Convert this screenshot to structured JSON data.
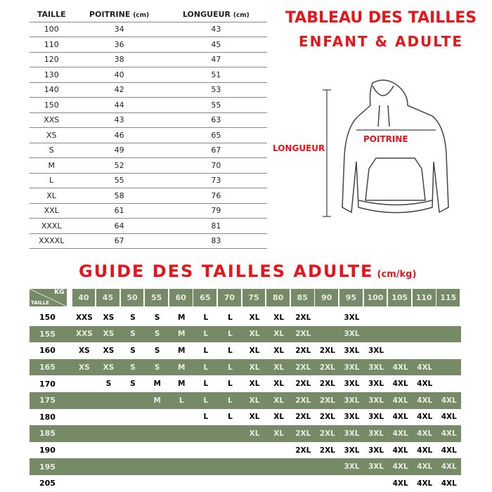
{
  "size_table": {
    "headers": {
      "taille": "TAILLE",
      "poitrine": "POITRINE",
      "longueur": "LONGUEUR",
      "unit": "(cm)"
    },
    "rows": [
      [
        "100",
        "34",
        "43"
      ],
      [
        "110",
        "36",
        "45"
      ],
      [
        "120",
        "38",
        "47"
      ],
      [
        "130",
        "40",
        "51"
      ],
      [
        "140",
        "42",
        "53"
      ],
      [
        "150",
        "44",
        "55"
      ],
      [
        "XXS",
        "43",
        "63"
      ],
      [
        "XS",
        "46",
        "65"
      ],
      [
        "S",
        "49",
        "67"
      ],
      [
        "M",
        "52",
        "70"
      ],
      [
        "L",
        "55",
        "73"
      ],
      [
        "XL",
        "58",
        "76"
      ],
      [
        "XXL",
        "61",
        "79"
      ],
      [
        "XXXL",
        "64",
        "81"
      ],
      [
        "XXXXL",
        "67",
        "83"
      ]
    ]
  },
  "title1": "TABLEAU DES TAILLES",
  "title2": "ENFANT & ADULTE",
  "diagram": {
    "longueur": "LONGUEUR",
    "poitrine": "POITRINE"
  },
  "guide": {
    "title": "GUIDE DES TAILLES ADULTE",
    "unit": "(cm/kg)",
    "corner_kg": "KG",
    "corner_taille": "TAILLE",
    "weights": [
      "40",
      "45",
      "50",
      "55",
      "60",
      "65",
      "70",
      "75",
      "80",
      "85",
      "90",
      "95",
      "100",
      "105",
      "110",
      "115"
    ],
    "rows": [
      {
        "h": "150",
        "s": [
          "XXS",
          "XS",
          "S",
          "S",
          "M",
          "L",
          "L",
          "XL",
          "XL",
          "2XL",
          "",
          "3XL",
          "",
          "",
          "",
          ""
        ]
      },
      {
        "h": "155",
        "s": [
          "XXS",
          "XS",
          "S",
          "S",
          "M",
          "L",
          "L",
          "XL",
          "XL",
          "2XL",
          "",
          "3XL",
          "",
          "",
          "",
          ""
        ]
      },
      {
        "h": "160",
        "s": [
          "XS",
          "XS",
          "S",
          "S",
          "M",
          "L",
          "L",
          "XL",
          "XL",
          "2XL",
          "2XL",
          "3XL",
          "3XL",
          "",
          "",
          ""
        ]
      },
      {
        "h": "165",
        "s": [
          "XS",
          "XS",
          "S",
          "S",
          "M",
          "L",
          "L",
          "XL",
          "XL",
          "2XL",
          "2XL",
          "3XL",
          "3XL",
          "4XL",
          "4XL",
          ""
        ]
      },
      {
        "h": "170",
        "s": [
          "",
          "S",
          "S",
          "M",
          "M",
          "L",
          "L",
          "XL",
          "XL",
          "2XL",
          "2XL",
          "3XL",
          "3XL",
          "4XL",
          "4XL",
          ""
        ]
      },
      {
        "h": "175",
        "s": [
          "",
          "",
          "",
          "M",
          "L",
          "L",
          "L",
          "XL",
          "XL",
          "2XL",
          "2XL",
          "3XL",
          "3XL",
          "4XL",
          "4XL",
          "4XL"
        ]
      },
      {
        "h": "180",
        "s": [
          "",
          "",
          "",
          "",
          "",
          "L",
          "L",
          "XL",
          "XL",
          "2XL",
          "2XL",
          "3XL",
          "3XL",
          "4XL",
          "4XL",
          "4XL"
        ]
      },
      {
        "h": "185",
        "s": [
          "",
          "",
          "",
          "",
          "",
          "",
          "",
          "XL",
          "XL",
          "2XL",
          "2XL",
          "3XL",
          "3XL",
          "4XL",
          "4XL",
          "4XL"
        ]
      },
      {
        "h": "190",
        "s": [
          "",
          "",
          "",
          "",
          "",
          "",
          "",
          "",
          "",
          "2XL",
          "2XL",
          "3XL",
          "3XL",
          "4XL",
          "4XL",
          "4XL"
        ]
      },
      {
        "h": "195",
        "s": [
          "",
          "",
          "",
          "",
          "",
          "",
          "",
          "",
          "",
          "",
          "",
          "3XL",
          "3XL",
          "4XL",
          "4XL",
          "4XL"
        ]
      },
      {
        "h": "205",
        "s": [
          "",
          "",
          "",
          "",
          "",
          "",
          "",
          "",
          "",
          "",
          "",
          "",
          "",
          "4XL",
          "4XL",
          "4XL"
        ]
      }
    ]
  },
  "colors": {
    "red": "#e8141b",
    "green": "#778a68"
  }
}
